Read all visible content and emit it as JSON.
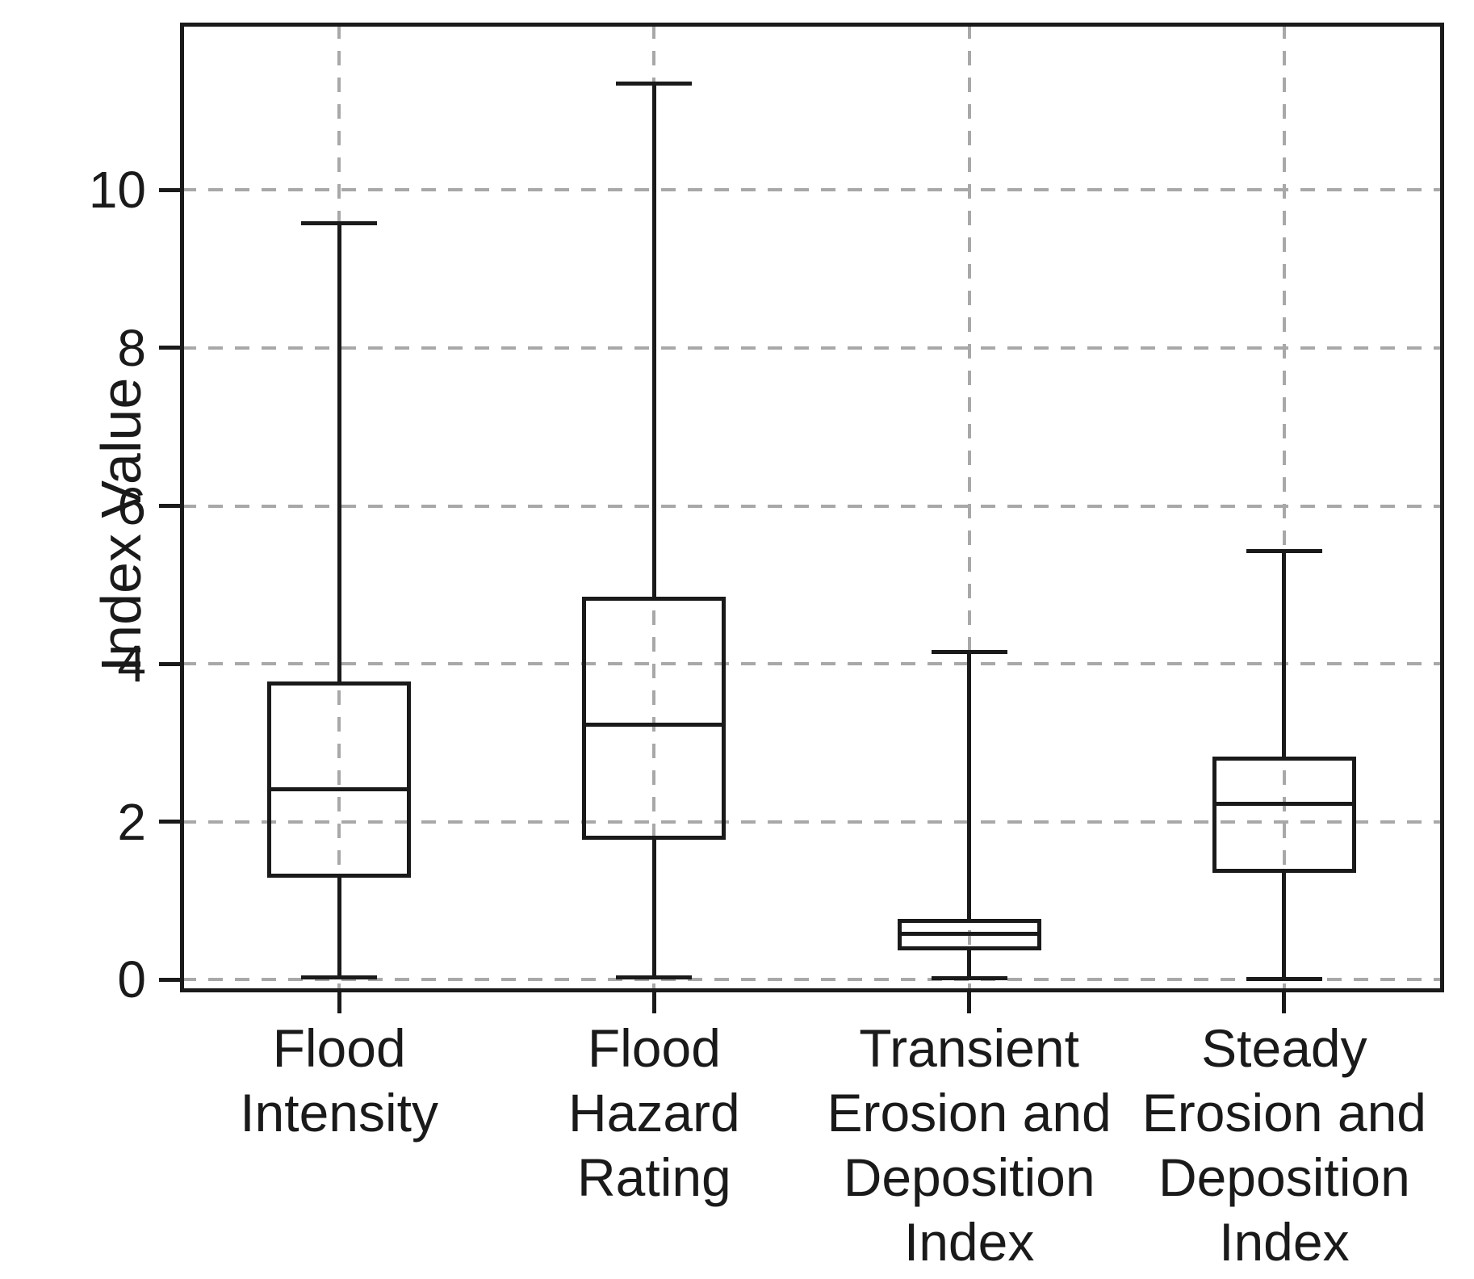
{
  "chart_data": {
    "type": "boxplot",
    "title": "",
    "xlabel": "",
    "ylabel": "Index Value",
    "ylim": [
      -0.13,
      12.1
    ],
    "yticks": [
      0,
      2,
      4,
      6,
      8,
      10
    ],
    "grid": {
      "horizontal": true,
      "vertical": true,
      "style": "dashed"
    },
    "legend": "none",
    "categories": [
      [
        "Flood",
        "Intensity"
      ],
      [
        "Flood",
        "Hazard",
        "Rating"
      ],
      [
        "Transient",
        "Erosion and",
        "Deposition",
        "Index"
      ],
      [
        "Steady",
        "Erosion and",
        "Deposition",
        "Index"
      ]
    ],
    "series": [
      {
        "name": "Flood Intensity",
        "whisker_low": 0.03,
        "q1": 1.29,
        "median": 2.41,
        "q3": 3.78,
        "whisker_high": 9.58
      },
      {
        "name": "Flood Hazard Rating",
        "whisker_low": 0.03,
        "q1": 1.77,
        "median": 3.23,
        "q3": 4.85,
        "whisker_high": 11.35
      },
      {
        "name": "Transient Erosion and Deposition Index",
        "whisker_low": 0.02,
        "q1": 0.37,
        "median": 0.58,
        "q3": 0.77,
        "whisker_high": 4.15
      },
      {
        "name": "Steady Erosion and Deposition Index",
        "whisker_low": 0.01,
        "q1": 1.35,
        "median": 2.23,
        "q3": 2.83,
        "whisker_high": 5.43
      }
    ],
    "colors": {
      "line": "#1a1a1a",
      "grid": "#a8a8a8",
      "background": "#ffffff"
    }
  }
}
